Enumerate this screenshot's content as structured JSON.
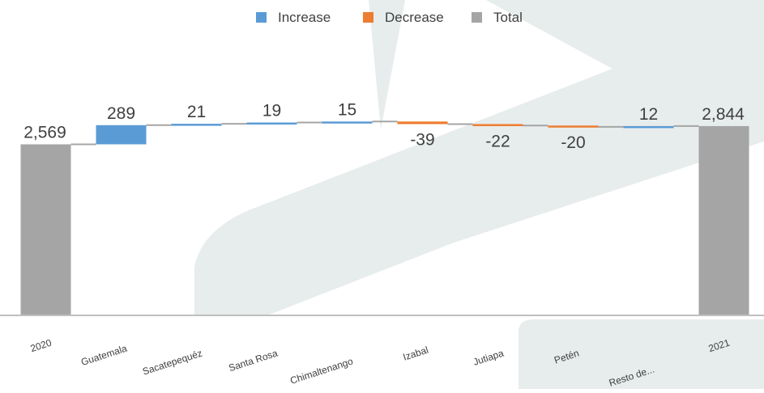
{
  "colors": {
    "increase": "#5b9bd5",
    "decrease": "#ed7d31",
    "total": "#a5a5a5",
    "connector": "#a5a5a5",
    "axis": "#bfbfbf",
    "label": "#404040",
    "watermark": "#e7ecec"
  },
  "legend": {
    "items": [
      {
        "key": "increase",
        "label": "Increase"
      },
      {
        "key": "decrease",
        "label": "Decrease"
      },
      {
        "key": "total",
        "label": "Total"
      }
    ]
  },
  "chart_data": {
    "type": "bar",
    "subtype": "waterfall",
    "title": "",
    "xlabel": "",
    "ylabel": "",
    "ylim": [
      0,
      3050
    ],
    "grid": false,
    "legend_position": "top",
    "categories": [
      "2020",
      "Guatemala",
      "Sacatepequéz",
      "Santa Rosa",
      "Chimaltenango",
      "Izabal",
      "Jutiapa",
      "Petén",
      "Resto de...",
      "2021"
    ],
    "values": [
      2569,
      289,
      21,
      19,
      15,
      -39,
      -22,
      -20,
      12,
      2844
    ],
    "kinds": [
      "total",
      "increase",
      "increase",
      "increase",
      "increase",
      "decrease",
      "decrease",
      "decrease",
      "increase",
      "total"
    ],
    "data_labels": [
      "2,569",
      "289",
      "21",
      "19",
      "15",
      "-39",
      "-22",
      "-20",
      "12",
      "2,844"
    ]
  }
}
